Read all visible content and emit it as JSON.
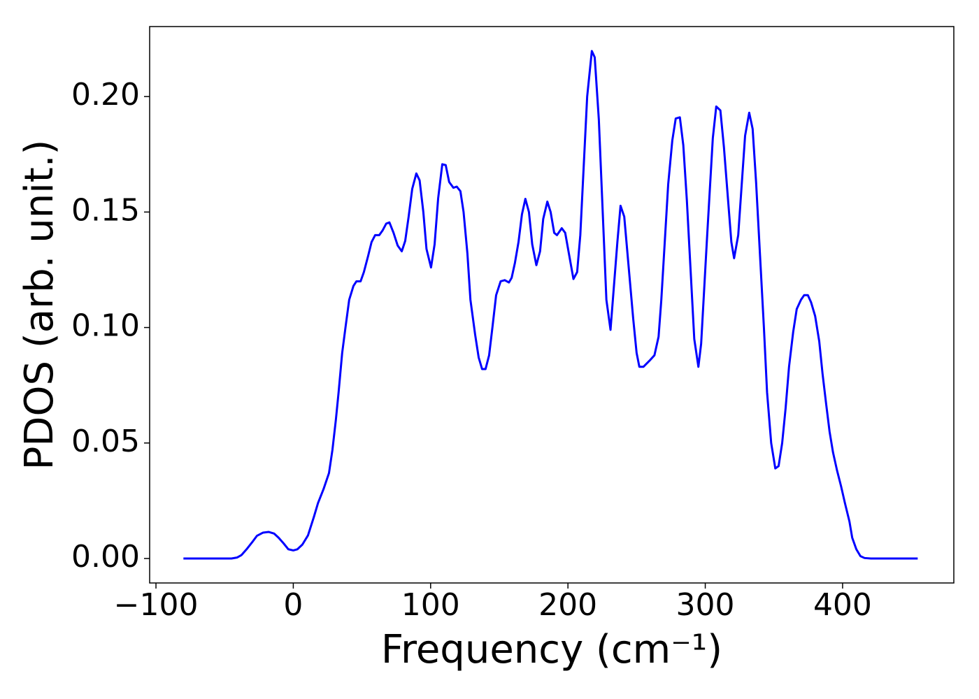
{
  "chart_data": {
    "type": "line",
    "xlabel": "Frequency (cm⁻¹)",
    "ylabel": "PDOS (arb. unit.)",
    "xlim": [
      -104.6,
      481
    ],
    "ylim": [
      -0.0106,
      0.2303
    ],
    "xticks": [
      {
        "value": -100,
        "label": "−100"
      },
      0,
      100,
      200,
      300,
      400
    ],
    "yticks": [
      {
        "value": 0,
        "label": "0.00"
      },
      {
        "value": 0.05,
        "label": "0.05"
      },
      {
        "value": 0.1,
        "label": "0.10"
      },
      {
        "value": 0.15,
        "label": "0.15"
      },
      {
        "value": 0.2,
        "label": "0.20"
      }
    ],
    "grid": false,
    "series": [
      {
        "color": "#0000ff",
        "x": [
          -80,
          -45,
          -41,
          -37.7,
          -34,
          -30,
          -26.5,
          -22,
          -18,
          -14,
          -10.7,
          -7,
          -3.6,
          0,
          3,
          6.6,
          10.7,
          15,
          18,
          22,
          26,
          28.5,
          31,
          33,
          35.6,
          38,
          40.7,
          43.8,
          46,
          49,
          51.4,
          54.5,
          57,
          59.6,
          62.6,
          65,
          67.7,
          70,
          73,
          76,
          79,
          81.5,
          84,
          86.6,
          89.6,
          92,
          94.7,
          97,
          100.3,
          102.9,
          105.5,
          108.5,
          111,
          113.5,
          116.6,
          119,
          121.7,
          124,
          126.8,
          129,
          132.4,
          135,
          137.5,
          140,
          142.6,
          145,
          147.7,
          151,
          154,
          157,
          159,
          161.4,
          164,
          166.5,
          169,
          171.6,
          174,
          177,
          179.7,
          182,
          185,
          187.4,
          190,
          192,
          195.5,
          198,
          201,
          204,
          206.7,
          209,
          214,
          217.4,
          219.5,
          222.5,
          228,
          231,
          236,
          238.3,
          241,
          247.5,
          250,
          252,
          255,
          260,
          263,
          266,
          268,
          273,
          276,
          278.5,
          281.5,
          284,
          286.6,
          292,
          295,
          297,
          301.4,
          305.5,
          308,
          311,
          313.6,
          319,
          321,
          324,
          329,
          332,
          334.5,
          337,
          342.7,
          345,
          348,
          351,
          353.4,
          356,
          358.5,
          361,
          364,
          366.6,
          369.7,
          372,
          374.7,
          377,
          380,
          383,
          385.4,
          388,
          390.5,
          393,
          396,
          399,
          401.7,
          405,
          407,
          410,
          413,
          416,
          420.6,
          454.7
        ],
        "values": [
          0,
          0,
          0.0004,
          0.0015,
          0.004,
          0.007,
          0.0098,
          0.0112,
          0.0115,
          0.0108,
          0.009,
          0.0065,
          0.004,
          0.0035,
          0.004,
          0.006,
          0.01,
          0.018,
          0.024,
          0.03,
          0.037,
          0.047,
          0.06,
          0.072,
          0.089,
          0.1,
          0.112,
          0.118,
          0.12,
          0.12,
          0.124,
          0.131,
          0.137,
          0.14,
          0.14,
          0.142,
          0.145,
          0.1455,
          0.141,
          0.1355,
          0.133,
          0.1375,
          0.148,
          0.16,
          0.1667,
          0.1637,
          0.15,
          0.134,
          0.126,
          0.136,
          0.156,
          0.1707,
          0.1703,
          0.163,
          0.1605,
          0.161,
          0.159,
          0.15,
          0.132,
          0.112,
          0.097,
          0.087,
          0.082,
          0.082,
          0.088,
          0.1,
          0.114,
          0.12,
          0.1205,
          0.1195,
          0.1215,
          0.128,
          0.137,
          0.149,
          0.1557,
          0.15,
          0.136,
          0.127,
          0.133,
          0.147,
          0.1545,
          0.15,
          0.141,
          0.14,
          0.143,
          0.141,
          0.131,
          0.121,
          0.124,
          0.14,
          0.2,
          0.2197,
          0.217,
          0.19,
          0.112,
          0.099,
          0.137,
          0.1527,
          0.148,
          0.104,
          0.089,
          0.083,
          0.083,
          0.086,
          0.088,
          0.096,
          0.112,
          0.162,
          0.181,
          0.1905,
          0.191,
          0.179,
          0.155,
          0.095,
          0.083,
          0.093,
          0.14,
          0.182,
          0.1957,
          0.194,
          0.178,
          0.137,
          0.13,
          0.14,
          0.183,
          0.193,
          0.186,
          0.163,
          0.1,
          0.072,
          0.05,
          0.039,
          0.04,
          0.05,
          0.065,
          0.083,
          0.098,
          0.108,
          0.112,
          0.114,
          0.114,
          0.111,
          0.105,
          0.094,
          0.08,
          0.067,
          0.055,
          0.046,
          0.038,
          0.031,
          0.024,
          0.016,
          0.009,
          0.004,
          0.001,
          0.0002,
          0,
          0
        ]
      }
    ]
  }
}
